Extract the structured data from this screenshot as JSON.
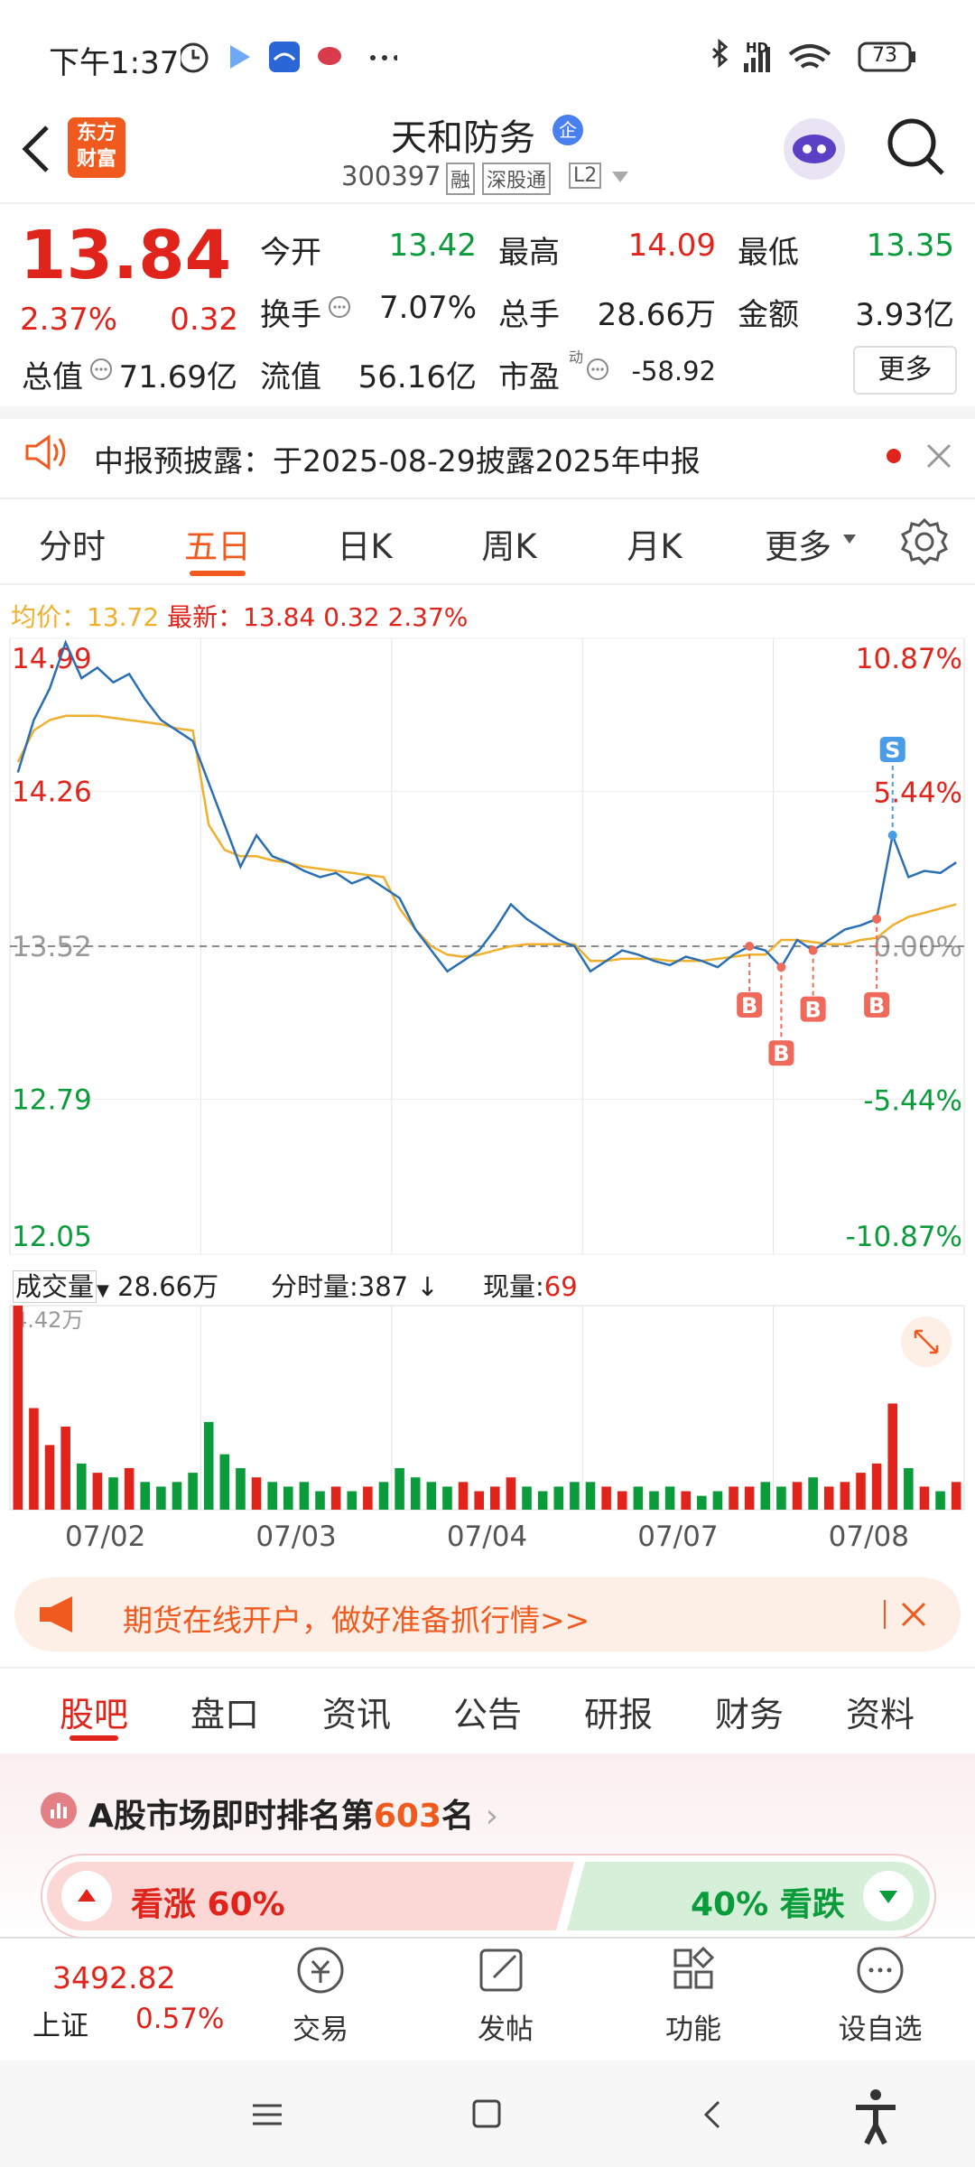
{
  "status_bar": {
    "time": "下午1:37",
    "hd": "HD",
    "battery": "73"
  },
  "header": {
    "logo": [
      "东方",
      "财富"
    ],
    "title": "天和防务",
    "badge": "企",
    "code": "300397",
    "tags": [
      "融",
      "深股通",
      "L2"
    ]
  },
  "quote": {
    "price": "13.84",
    "change_pct": "2.37%",
    "change": "0.32",
    "fields": [
      {
        "label": "今开",
        "value": "13.42"
      },
      {
        "label": "最高",
        "value": "14.09"
      },
      {
        "label": "最低",
        "value": "13.35"
      },
      {
        "label": "换手",
        "value": "7.07%"
      },
      {
        "label": "总手",
        "value": "28.66万"
      },
      {
        "label": "金额",
        "value": "3.93亿"
      },
      {
        "label": "总值",
        "value": "71.69亿"
      },
      {
        "label": "流值",
        "value": "56.16亿"
      },
      {
        "label": "市盈",
        "value": "-58.92"
      }
    ],
    "pe_tag": "动",
    "more": "更多"
  },
  "notice": "中报预披露：于2025-08-29披露2025年中报",
  "chart_tabs": {
    "items": [
      "分时",
      "五日",
      "日K",
      "周K",
      "月K",
      "更多"
    ],
    "active": 1
  },
  "legend": {
    "avg_label": "均价：",
    "avg": "13.72",
    "last_label": "最新：",
    "last": "13.84",
    "change": "0.32",
    "change_pct": "2.37%"
  },
  "chart": {
    "ylim": [
      12.05,
      14.99
    ],
    "yticks": [
      14.99,
      14.26,
      13.52,
      12.79,
      12.05
    ],
    "y2lim": [
      -10.87,
      10.87
    ],
    "y2ticks": [
      {
        "value": 10.87,
        "label": "10.87%"
      },
      {
        "value": 5.44,
        "label": "5.44%"
      },
      {
        "value": 0,
        "label": "0.00%"
      },
      {
        "value": -5.44,
        "label": "-5.44%"
      },
      {
        "value": -10.87,
        "label": "-10.87%"
      }
    ],
    "reference": 13.52,
    "days": [
      "07/02",
      "07/03",
      "07/04",
      "07/07",
      "07/08"
    ],
    "price": [
      14.35,
      14.6,
      14.75,
      14.97,
      14.8,
      14.85,
      14.78,
      14.82,
      14.7,
      14.6,
      14.55,
      14.5,
      14.3,
      14.1,
      13.9,
      14.05,
      13.95,
      13.92,
      13.88,
      13.85,
      13.87,
      13.82,
      13.85,
      13.8,
      13.75,
      13.6,
      13.5,
      13.4,
      13.45,
      13.5,
      13.6,
      13.72,
      13.65,
      13.6,
      13.55,
      13.52,
      13.4,
      13.45,
      13.5,
      13.48,
      13.45,
      13.43,
      13.47,
      13.45,
      13.42,
      13.48,
      13.52,
      13.5,
      13.42,
      13.55,
      13.5,
      13.55,
      13.6,
      13.62,
      13.65,
      14.05,
      13.85,
      13.88,
      13.87,
      13.92
    ],
    "average": [
      14.4,
      14.55,
      14.6,
      14.62,
      14.62,
      14.62,
      14.61,
      14.6,
      14.59,
      14.58,
      14.56,
      14.55,
      14.1,
      13.98,
      13.95,
      13.95,
      13.93,
      13.92,
      13.9,
      13.89,
      13.88,
      13.87,
      13.86,
      13.85,
      13.7,
      13.6,
      13.52,
      13.48,
      13.47,
      13.48,
      13.5,
      13.52,
      13.53,
      13.53,
      13.53,
      13.53,
      13.45,
      13.45,
      13.46,
      13.46,
      13.46,
      13.45,
      13.45,
      13.45,
      13.46,
      13.47,
      13.48,
      13.48,
      13.55,
      13.55,
      13.54,
      13.53,
      13.53,
      13.55,
      13.56,
      13.62,
      13.66,
      13.68,
      13.7,
      13.72
    ],
    "markers": [
      {
        "label": "B",
        "index": 46
      },
      {
        "label": "B",
        "index": 48
      },
      {
        "label": "B",
        "index": 50
      },
      {
        "label": "B",
        "index": 54
      },
      {
        "label": "S",
        "index": 55
      }
    ]
  },
  "volume": {
    "label": "成交量",
    "total": "28.66万",
    "minute_label": "分时量:",
    "minute": "387",
    "current_label": "现量:",
    "current": "69",
    "ylim": [
      0,
      4.42
    ],
    "yticks": [
      {
        "value": 4.42,
        "label": "4.42万"
      }
    ],
    "values": [
      4.42,
      2.2,
      1.4,
      1.8,
      1.0,
      0.8,
      0.7,
      0.9,
      0.6,
      0.5,
      0.6,
      0.8,
      1.9,
      1.2,
      0.9,
      0.7,
      0.6,
      0.5,
      0.6,
      0.4,
      0.5,
      0.4,
      0.5,
      0.6,
      0.9,
      0.7,
      0.6,
      0.5,
      0.6,
      0.4,
      0.5,
      0.7,
      0.5,
      0.4,
      0.5,
      0.6,
      0.6,
      0.5,
      0.4,
      0.5,
      0.4,
      0.5,
      0.4,
      0.3,
      0.4,
      0.5,
      0.5,
      0.6,
      0.5,
      0.6,
      0.7,
      0.5,
      0.6,
      0.8,
      1.0,
      2.3,
      0.9,
      0.5,
      0.4,
      0.6
    ]
  },
  "ad": "期货在线开户，做好准备抓行情>>",
  "bottom_tabs": {
    "items": [
      "股吧",
      "盘口",
      "资讯",
      "公告",
      "研报",
      "财务",
      "资料"
    ],
    "active": 0
  },
  "ranking": {
    "prefix": "A股市场即时排名第",
    "rank": "603",
    "suffix": "名"
  },
  "sentiment": {
    "bull": "看涨 60%",
    "bear": "40% 看跌"
  },
  "dock": {
    "index": "3492.82",
    "index_name": "上证",
    "index_change": "0.57%",
    "items": [
      "交易",
      "发帖",
      "功能",
      "设自选"
    ]
  }
}
